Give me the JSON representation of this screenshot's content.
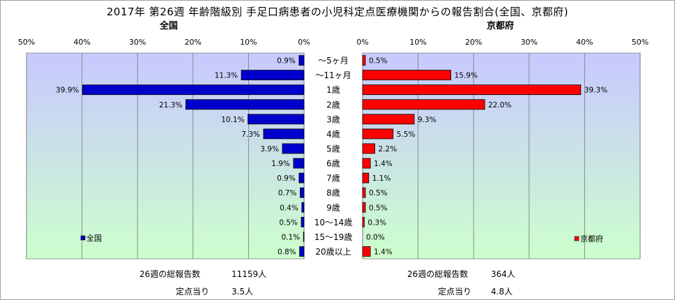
{
  "title": "2017年 第26週 年齢階級別 手足口病患者の小児科定点医療機関からの報告割合(全国、京都府)",
  "chart_data": [
    {
      "type": "bar",
      "orientation": "horizontal",
      "title": "全国",
      "categories": [
        "～5ヶ月",
        "～11ヶ月",
        "1歳",
        "2歳",
        "3歳",
        "4歳",
        "5歳",
        "6歳",
        "7歳",
        "8歳",
        "9歳",
        "10～14歳",
        "15～19歳",
        "20歳以上"
      ],
      "series": [
        {
          "name": "全国",
          "values": [
            0.9,
            11.3,
            39.9,
            21.3,
            10.1,
            7.3,
            3.9,
            1.9,
            0.9,
            0.7,
            0.4,
            0.5,
            0.1,
            0.8
          ]
        }
      ],
      "data_labels": [
        "0.9%",
        "11.3%",
        "39.9%",
        "21.3%",
        "10.1%",
        "7.3%",
        "3.9%",
        "1.9%",
        "0.9%",
        "0.7%",
        "0.4%",
        "0.5%",
        "0.1%",
        "0.8%"
      ],
      "xlim": [
        0,
        50
      ],
      "xticks": [
        "50%",
        "40%",
        "30%",
        "20%",
        "10%",
        "0%"
      ],
      "direction": "reversed",
      "grid": true,
      "legend": "bottom-left",
      "color": "#0000cc"
    },
    {
      "type": "bar",
      "orientation": "horizontal",
      "title": "京都府",
      "categories": [
        "～5ヶ月",
        "～11ヶ月",
        "1歳",
        "2歳",
        "3歳",
        "4歳",
        "5歳",
        "6歳",
        "7歳",
        "8歳",
        "9歳",
        "10～14歳",
        "15～19歳",
        "20歳以上"
      ],
      "series": [
        {
          "name": "京都府",
          "values": [
            0.5,
            15.9,
            39.3,
            22.0,
            9.3,
            5.5,
            2.2,
            1.4,
            1.1,
            0.5,
            0.5,
            0.3,
            0.0,
            1.4
          ]
        }
      ],
      "data_labels": [
        "0.5%",
        "15.9%",
        "39.3%",
        "22.0%",
        "9.3%",
        "5.5%",
        "2.2%",
        "1.4%",
        "1.1%",
        "0.5%",
        "0.5%",
        "0.3%",
        "0.0%",
        "1.4%"
      ],
      "xlim": [
        0,
        50
      ],
      "xticks": [
        "0%",
        "10%",
        "20%",
        "30%",
        "40%",
        "50%"
      ],
      "grid": true,
      "legend": "bottom-right",
      "color": "#ff0000"
    }
  ],
  "stats": {
    "national": {
      "total_label": "26週の総報告数",
      "total_value": "11159人",
      "per_label": "定点当り",
      "per_value": "3.5人"
    },
    "kyoto": {
      "total_label": "26週の総報告数",
      "total_value": "364人",
      "per_label": "定点当り",
      "per_value": "4.8人"
    }
  },
  "colors": {
    "plot_bg_top": "#c8c8ff",
    "plot_bg_bottom": "#ccffcc",
    "national_bar": "#0000cc",
    "kyoto_bar": "#ff0000",
    "grid": "#777777"
  }
}
